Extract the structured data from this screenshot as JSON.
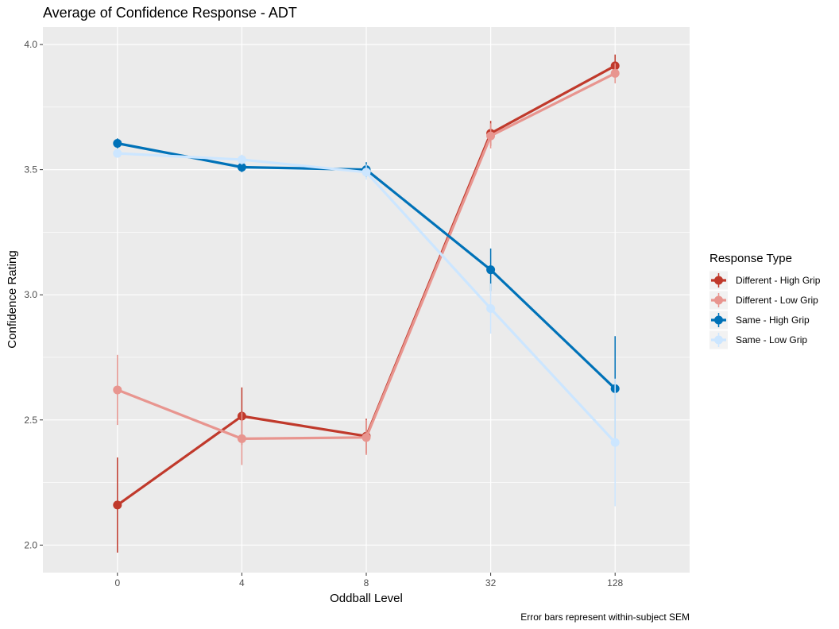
{
  "chart_data": {
    "type": "line",
    "title": "Average of Confidence Response - ADT",
    "xlabel": "Oddball Level",
    "ylabel": "Confidence Rating",
    "caption": "Error bars represent within-subject SEM",
    "categories": [
      "0",
      "4",
      "8",
      "32",
      "128"
    ],
    "ylim": [
      1.89,
      4.07
    ],
    "yticks": [
      2.0,
      2.5,
      3.0,
      3.5,
      4.0
    ],
    "ytick_labels": [
      "2.0",
      "2.5",
      "3.0",
      "3.5",
      "4.0"
    ],
    "grid": true,
    "legend": {
      "title": "Response Type",
      "position": "right"
    },
    "series": [
      {
        "name": "Different - High Grip",
        "color": "#c0392b",
        "values": [
          2.16,
          2.515,
          2.435,
          3.645,
          3.915
        ],
        "err": [
          0.19,
          0.115,
          0.07,
          0.05,
          0.045
        ]
      },
      {
        "name": "Different - Low Grip",
        "color": "#e8958f",
        "values": [
          2.62,
          2.425,
          2.43,
          3.635,
          3.885
        ],
        "err": [
          0.14,
          0.105,
          0.07,
          0.05,
          0.04
        ]
      },
      {
        "name": "Same - High Grip",
        "color": "#0072b8",
        "values": [
          3.605,
          3.51,
          3.5,
          3.1,
          2.625
        ],
        "err": [
          0.02,
          0.02,
          0.03,
          0.085,
          0.21
        ]
      },
      {
        "name": "Same - Low Grip",
        "color": "#cce6ff",
        "values": [
          3.565,
          3.54,
          3.49,
          2.945,
          2.41
        ],
        "err": [
          0.015,
          0.02,
          0.03,
          0.1,
          0.255
        ]
      }
    ]
  }
}
